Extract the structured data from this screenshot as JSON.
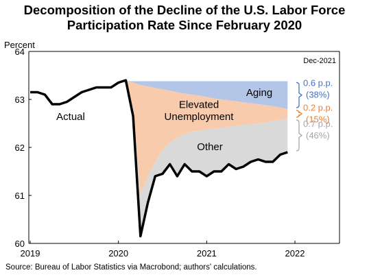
{
  "title_line1": "Decomposition of the Decline of the U.S. Labor Force",
  "title_line2": "Participation Rate Since February 2020",
  "source": "Source: Bureau of Labor Statistics via Macrobond; authors' calculations.",
  "chart_data": {
    "type": "area",
    "ylabel": "Percent",
    "ylim": [
      60,
      64
    ],
    "yticks": [
      "64",
      "63",
      "62",
      "61",
      "60"
    ],
    "xticks": [
      "2019",
      "2020",
      "2021",
      "2022"
    ],
    "date_label": "Dec-2021",
    "grid": false,
    "colors": {
      "actual": "#000000",
      "aging": "#b4c6e7",
      "elevated_unemployment": "#f8cbad",
      "other": "#d9d9d9",
      "aging_bracket": "#4472c4",
      "unemployment_bracket": "#ed7d31",
      "other_bracket": "#a6a6a6"
    },
    "area_labels": {
      "aging": "Aging",
      "elevated_unemployment": [
        "Elevated",
        "Unemployment"
      ],
      "other": "Other"
    },
    "series_label": "Actual",
    "actual": {
      "x": [
        "2019-01",
        "2019-02",
        "2019-03",
        "2019-04",
        "2019-05",
        "2019-06",
        "2019-07",
        "2019-08",
        "2019-09",
        "2019-10",
        "2019-11",
        "2019-12",
        "2020-01",
        "2020-02",
        "2020-03",
        "2020-04",
        "2020-05",
        "2020-06",
        "2020-07",
        "2020-08",
        "2020-09",
        "2020-10",
        "2020-11",
        "2020-12",
        "2021-01",
        "2021-02",
        "2021-03",
        "2021-04",
        "2021-05",
        "2021-06",
        "2021-07",
        "2021-08",
        "2021-09",
        "2021-10",
        "2021-11",
        "2021-12"
      ],
      "y": [
        63.15,
        63.15,
        63.1,
        62.9,
        62.9,
        62.95,
        63.05,
        63.15,
        63.2,
        63.25,
        63.25,
        63.25,
        63.35,
        63.4,
        62.65,
        60.15,
        60.85,
        61.4,
        61.45,
        61.65,
        61.4,
        61.65,
        61.5,
        61.5,
        61.4,
        61.5,
        61.5,
        61.65,
        61.55,
        61.6,
        61.7,
        61.75,
        61.7,
        61.7,
        61.85,
        61.9
      ]
    },
    "decomposition": {
      "x": [
        "2020-02",
        "2020-03",
        "2020-04",
        "2020-05",
        "2020-06",
        "2020-07",
        "2020-08",
        "2020-09",
        "2020-10",
        "2020-11",
        "2020-12",
        "2021-01",
        "2021-02",
        "2021-03",
        "2021-04",
        "2021-05",
        "2021-06",
        "2021-07",
        "2021-08",
        "2021-09",
        "2021-10",
        "2021-11",
        "2021-12"
      ],
      "top": [
        63.38,
        63.38,
        63.38,
        63.38,
        63.38,
        63.38,
        63.38,
        63.38,
        63.38,
        63.38,
        63.38,
        63.38,
        63.38,
        63.38,
        63.38,
        63.38,
        63.38,
        63.38,
        63.38,
        63.38,
        63.38,
        63.38,
        63.38
      ],
      "aging_bottom": [
        63.38,
        63.35,
        63.3,
        63.27,
        63.24,
        63.21,
        63.18,
        63.15,
        63.12,
        63.1,
        63.08,
        63.05,
        63.02,
        63.0,
        62.98,
        62.96,
        62.94,
        62.92,
        62.9,
        62.88,
        62.86,
        62.83,
        62.8
      ],
      "unemployment_bottom": [
        63.38,
        62.8,
        61.0,
        61.4,
        61.7,
        61.95,
        62.1,
        62.2,
        62.28,
        62.33,
        62.35,
        62.37,
        62.39,
        62.41,
        62.43,
        62.45,
        62.47,
        62.48,
        62.5,
        62.52,
        62.55,
        62.57,
        62.6
      ]
    },
    "contributions": [
      {
        "name": "Aging",
        "value": "0.6 p.p.",
        "share": "(38%)"
      },
      {
        "name": "Elevated Unemployment",
        "value": "0.2 p.p.",
        "share": "(15%)"
      },
      {
        "name": "Other",
        "value": "0.7 p.p.",
        "share": "(46%)"
      }
    ]
  }
}
